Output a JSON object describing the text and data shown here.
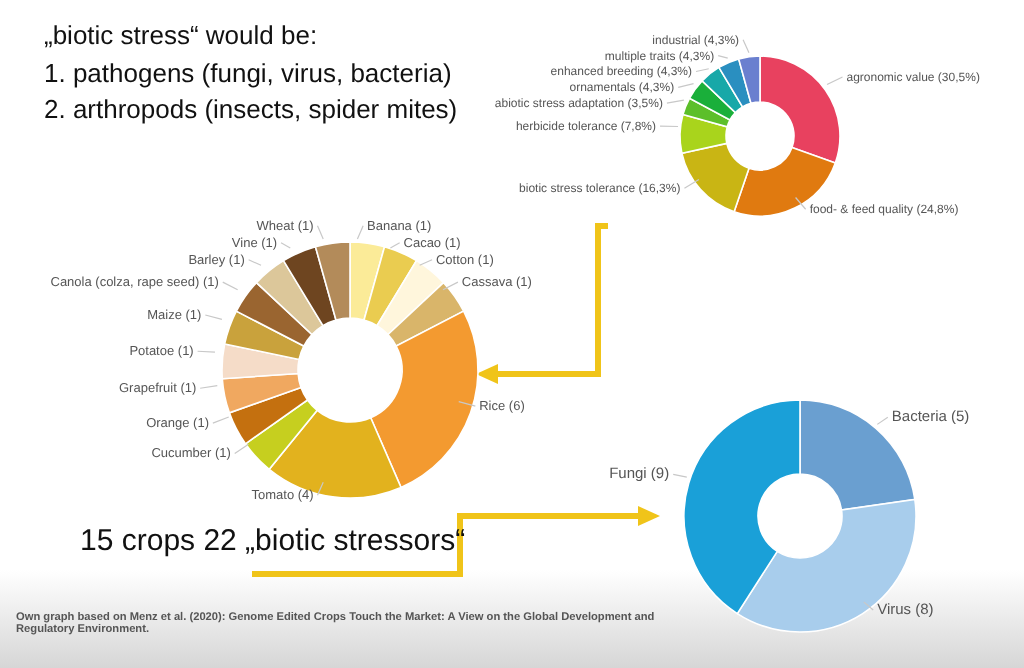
{
  "chart_data": [
    {
      "type": "donut",
      "categories": [
        "agronomic value",
        "food- & feed quality",
        "biotic stress tolerance",
        "herbicide tolerance",
        "abiotic stress adaptation",
        "ornamentals",
        "enhanced breeding",
        "multiple traits",
        "industrial"
      ],
      "values": [
        30.5,
        24.8,
        16.3,
        7.8,
        3.5,
        4.3,
        4.3,
        4.3,
        4.3
      ],
      "value_labels": [
        "(30,5%)",
        "(24,8%)",
        "(16,3%)",
        "(7,8%)",
        "(3,5%)",
        "(4,3%)",
        "(4,3%)",
        "(4,3%)",
        "(4,3%)"
      ],
      "colors": [
        "#e8415f",
        "#e07a10",
        "#c9b514",
        "#a9d41c",
        "#5cbf2a",
        "#1aaf3a",
        "#17a8a8",
        "#2a8fc0",
        "#6a7fcf"
      ],
      "annotations": [
        "„biotic stress“ would be:",
        "1. pathogens (fungi, virus, bacteria)",
        "2. arthropods (insects, spider mites)"
      ]
    },
    {
      "type": "donut",
      "categories": [
        "Banana",
        "Cacao",
        "Cotton",
        "Cassava",
        "Rice",
        "Tomato",
        "Cucumber",
        "Orange",
        "Grapefruit",
        "Potatoe",
        "Maize",
        "Canola (colza, rape seed)",
        "Barley",
        "Vine",
        "Wheat"
      ],
      "values": [
        1,
        1,
        1,
        1,
        6,
        4,
        1,
        1,
        1,
        1,
        1,
        1,
        1,
        1,
        1
      ],
      "value_labels": [
        "(1)",
        "(1)",
        "(1)",
        "(1)",
        "(6)",
        "(4)",
        "(1)",
        "(1)",
        "(1)",
        "(1)",
        "(1)",
        "(1)",
        "(1)",
        "(1)",
        "(1)"
      ],
      "colors": [
        "#fbeb98",
        "#eacc50",
        "#fff6dc",
        "#d9b56a",
        "#f39a30",
        "#e2b21e",
        "#c6cf1f",
        "#c4700f",
        "#f0a860",
        "#f5dcc8",
        "#c9a23c",
        "#9a6530",
        "#dcc79a",
        "#6e4520",
        "#b38b5a"
      ],
      "annotations": [
        "15 crops 22 „biotic stressors“",
        "Own graph based on Menz et al. (2020): Genome Edited Crops Touch the Market: A View on the Global Development and Regulatory Environment."
      ]
    },
    {
      "type": "donut",
      "categories": [
        "Bacteria",
        "Virus",
        "Fungi"
      ],
      "values": [
        5,
        8,
        9
      ],
      "value_labels": [
        "(5)",
        "(8)",
        "(9)"
      ],
      "colors": [
        "#6a9fd0",
        "#a8cdec",
        "#1aa0d8"
      ]
    }
  ]
}
